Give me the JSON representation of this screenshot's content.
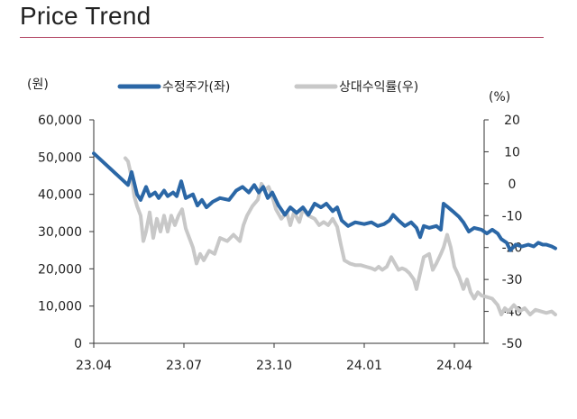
{
  "title": "Price Trend",
  "chart_data": {
    "type": "line",
    "left_unit": "(원)",
    "right_unit": "(%)",
    "x_ticks": [
      "23.04",
      "23.07",
      "23.10",
      "24.01",
      "24.04"
    ],
    "y_left": {
      "range": [
        0,
        60000
      ],
      "ticks": [
        "0",
        "10,000",
        "20,000",
        "30,000",
        "40,000",
        "50,000",
        "60,000"
      ]
    },
    "y_right": {
      "range": [
        -50,
        20
      ],
      "ticks": [
        "-50",
        "-40",
        "-30",
        "-20",
        "-10",
        "0",
        "10",
        "20"
      ]
    },
    "legend": {
      "position": "top"
    },
    "series": [
      {
        "name": "수정주가(좌)",
        "axis": "left",
        "color": "#2b67a6",
        "points": [
          [
            0.0,
            51000
          ],
          [
            0.38,
            42500
          ],
          [
            0.42,
            46000
          ],
          [
            0.48,
            40000
          ],
          [
            0.52,
            38500
          ],
          [
            0.58,
            42000
          ],
          [
            0.62,
            39500
          ],
          [
            0.68,
            40500
          ],
          [
            0.72,
            39000
          ],
          [
            0.78,
            41000
          ],
          [
            0.82,
            39500
          ],
          [
            0.88,
            40500
          ],
          [
            0.92,
            39500
          ],
          [
            0.97,
            43500
          ],
          [
            1.02,
            39000
          ],
          [
            1.1,
            40000
          ],
          [
            1.15,
            37000
          ],
          [
            1.2,
            38500
          ],
          [
            1.25,
            36500
          ],
          [
            1.32,
            38000
          ],
          [
            1.4,
            39000
          ],
          [
            1.5,
            38500
          ],
          [
            1.58,
            41000
          ],
          [
            1.65,
            42000
          ],
          [
            1.72,
            40500
          ],
          [
            1.78,
            42500
          ],
          [
            1.83,
            40500
          ],
          [
            1.88,
            42000
          ],
          [
            1.93,
            39000
          ],
          [
            1.98,
            40500
          ],
          [
            2.05,
            37000
          ],
          [
            2.12,
            34500
          ],
          [
            2.18,
            36500
          ],
          [
            2.25,
            35000
          ],
          [
            2.32,
            36500
          ],
          [
            2.38,
            34500
          ],
          [
            2.45,
            37500
          ],
          [
            2.52,
            36500
          ],
          [
            2.58,
            37500
          ],
          [
            2.65,
            35500
          ],
          [
            2.7,
            36500
          ],
          [
            2.75,
            33000
          ],
          [
            2.82,
            31500
          ],
          [
            2.9,
            32500
          ],
          [
            3.0,
            32000
          ],
          [
            3.08,
            32500
          ],
          [
            3.15,
            31500
          ],
          [
            3.22,
            32000
          ],
          [
            3.28,
            33000
          ],
          [
            3.32,
            34500
          ],
          [
            3.38,
            33000
          ],
          [
            3.45,
            31500
          ],
          [
            3.52,
            32500
          ],
          [
            3.58,
            31000
          ],
          [
            3.62,
            28500
          ],
          [
            3.66,
            31500
          ],
          [
            3.72,
            31000
          ],
          [
            3.8,
            31500
          ],
          [
            3.85,
            30500
          ],
          [
            3.88,
            37500
          ],
          [
            3.93,
            36500
          ],
          [
            3.98,
            35500
          ],
          [
            4.05,
            34000
          ],
          [
            4.1,
            32500
          ],
          [
            4.16,
            30000
          ],
          [
            4.22,
            31000
          ],
          [
            4.3,
            30500
          ],
          [
            4.36,
            29500
          ],
          [
            4.42,
            30500
          ],
          [
            4.48,
            29500
          ],
          [
            4.52,
            28000
          ],
          [
            4.58,
            27000
          ],
          [
            4.62,
            25000
          ],
          [
            4.68,
            26500
          ],
          [
            4.75,
            26000
          ],
          [
            4.82,
            26500
          ],
          [
            4.88,
            26000
          ],
          [
            4.93,
            27000
          ],
          [
            4.98,
            26500
          ],
          [
            5.02,
            26500
          ],
          [
            5.08,
            26000
          ],
          [
            5.12,
            25500
          ]
        ]
      },
      {
        "name": "상대수익률(우)",
        "axis": "right",
        "color": "#c8c8c8",
        "points": [
          [
            0.35,
            8.0
          ],
          [
            0.38,
            7.0
          ],
          [
            0.42,
            2.0
          ],
          [
            0.45,
            -4.0
          ],
          [
            0.48,
            -7.0
          ],
          [
            0.52,
            -10.0
          ],
          [
            0.55,
            -18.0
          ],
          [
            0.58,
            -15.0
          ],
          [
            0.62,
            -9.0
          ],
          [
            0.66,
            -17.0
          ],
          [
            0.7,
            -11.0
          ],
          [
            0.74,
            -15.0
          ],
          [
            0.78,
            -10.0
          ],
          [
            0.82,
            -15.0
          ],
          [
            0.86,
            -10.0
          ],
          [
            0.9,
            -13.0
          ],
          [
            0.94,
            -10.0
          ],
          [
            0.98,
            -8.0
          ],
          [
            1.02,
            -14.0
          ],
          [
            1.06,
            -17.0
          ],
          [
            1.1,
            -20.0
          ],
          [
            1.14,
            -25.0
          ],
          [
            1.18,
            -22.0
          ],
          [
            1.22,
            -24.0
          ],
          [
            1.28,
            -21.0
          ],
          [
            1.34,
            -22.0
          ],
          [
            1.4,
            -17.0
          ],
          [
            1.48,
            -18.0
          ],
          [
            1.55,
            -16.0
          ],
          [
            1.62,
            -18.0
          ],
          [
            1.66,
            -13.0
          ],
          [
            1.7,
            -10.0
          ],
          [
            1.76,
            -7.0
          ],
          [
            1.82,
            -5.0
          ],
          [
            1.86,
            0.0
          ],
          [
            1.9,
            -2.0
          ],
          [
            1.94,
            -1.0
          ],
          [
            1.98,
            -4.0
          ],
          [
            2.02,
            -8.0
          ],
          [
            2.08,
            -11.0
          ],
          [
            2.14,
            -9.0
          ],
          [
            2.18,
            -13.0
          ],
          [
            2.22,
            -9.0
          ],
          [
            2.28,
            -12.0
          ],
          [
            2.32,
            -8.0
          ],
          [
            2.38,
            -10.0
          ],
          [
            2.45,
            -11.0
          ],
          [
            2.5,
            -13.0
          ],
          [
            2.55,
            -12.0
          ],
          [
            2.6,
            -13.0
          ],
          [
            2.65,
            -11.0
          ],
          [
            2.7,
            -13.5
          ],
          [
            2.74,
            -19.0
          ],
          [
            2.78,
            -24.0
          ],
          [
            2.84,
            -25.0
          ],
          [
            2.9,
            -25.5
          ],
          [
            2.96,
            -25.5
          ],
          [
            3.02,
            -26.0
          ],
          [
            3.08,
            -26.5
          ],
          [
            3.12,
            -27.0
          ],
          [
            3.16,
            -26.0
          ],
          [
            3.2,
            -27.0
          ],
          [
            3.25,
            -26.0
          ],
          [
            3.3,
            -23.0
          ],
          [
            3.34,
            -25.0
          ],
          [
            3.38,
            -27.0
          ],
          [
            3.42,
            -26.5
          ],
          [
            3.46,
            -27.0
          ],
          [
            3.5,
            -28.0
          ],
          [
            3.55,
            -30.0
          ],
          [
            3.58,
            -33.0
          ],
          [
            3.62,
            -28.0
          ],
          [
            3.66,
            -23.0
          ],
          [
            3.72,
            -22.0
          ],
          [
            3.76,
            -27.0
          ],
          [
            3.8,
            -25.0
          ],
          [
            3.85,
            -22.0
          ],
          [
            3.88,
            -20.0
          ],
          [
            3.92,
            -16.0
          ],
          [
            3.96,
            -20.0
          ],
          [
            4.0,
            -26.0
          ],
          [
            4.05,
            -29.0
          ],
          [
            4.1,
            -33.0
          ],
          [
            4.14,
            -30.0
          ],
          [
            4.18,
            -34.0
          ],
          [
            4.22,
            -36.0
          ],
          [
            4.26,
            -34.0
          ],
          [
            4.3,
            -35.0
          ],
          [
            4.36,
            -35.5
          ],
          [
            4.42,
            -36.0
          ],
          [
            4.48,
            -38.0
          ],
          [
            4.52,
            -41.0
          ],
          [
            4.56,
            -39.0
          ],
          [
            4.6,
            -40.0
          ],
          [
            4.66,
            -38.0
          ],
          [
            4.72,
            -40.0
          ],
          [
            4.78,
            -39.0
          ],
          [
            4.84,
            -41.0
          ],
          [
            4.9,
            -39.5
          ],
          [
            4.96,
            -40.0
          ],
          [
            5.02,
            -40.5
          ],
          [
            5.08,
            -40.0
          ],
          [
            5.12,
            -41.0
          ]
        ]
      }
    ]
  }
}
